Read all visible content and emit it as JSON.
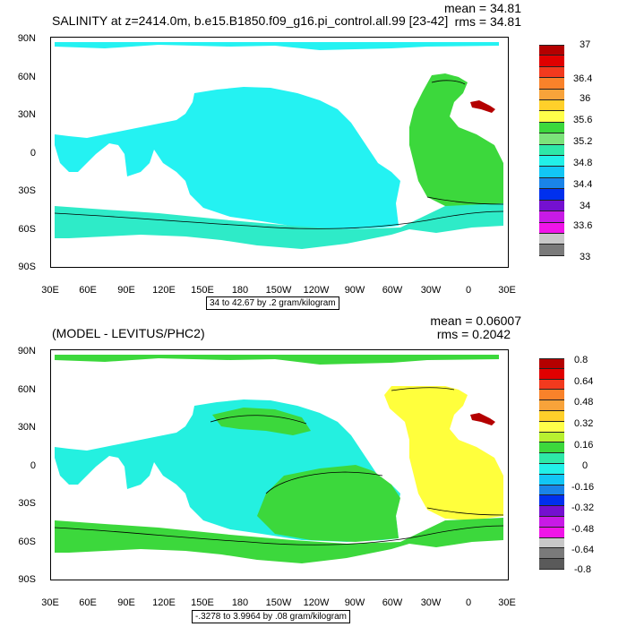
{
  "panels": [
    {
      "title": "SALINITY at z=2414.0m, b.e15.B1850.f09_g16.pi_control.all.99 [23-42]",
      "mean_label": "mean = 34.81",
      "rms_label": "rms = 34.81",
      "range_label": "34 to 42.67 by .2 gram/kilogram",
      "colorbar_labels": [
        "37",
        "36.4",
        "36",
        "35.6",
        "35.2",
        "34.8",
        "34.4",
        "34",
        "33.6",
        "33"
      ],
      "colorbar_colors": [
        "#b40000",
        "#e00000",
        "#f23a1e",
        "#f9822a",
        "#f8a33a",
        "#ffd02a",
        "#ffff4a",
        "#3cd83c",
        "#7ce37a",
        "#2ee8a8",
        "#22f0e8",
        "#12c6f5",
        "#1a84e8",
        "#0030ee",
        "#7410d0",
        "#c81ae6",
        "#f014e8",
        "#c8c8c8",
        "#7a7a7a"
      ],
      "ocean_colors": {
        "pacific": "#24f2f2",
        "atlantic": "#3cd83c",
        "southern": "#2eebc8",
        "med": "#b40000"
      }
    },
    {
      "title": "(MODEL - LEVITUS/PHC2)",
      "mean_label": "mean = 0.06007",
      "rms_label": "rms = 0.2042",
      "range_label": "-.3278 to 3.9964 by .08 gram/kilogram",
      "colorbar_labels": [
        "0.8",
        "0.64",
        "0.48",
        "0.32",
        "0.16",
        "0",
        "-0.16",
        "-0.32",
        "-0.48",
        "-0.64",
        "-0.8"
      ],
      "colorbar_colors": [
        "#b40000",
        "#e00000",
        "#f23a1e",
        "#f9822a",
        "#f8a33a",
        "#ffd02a",
        "#ffff4a",
        "#b8f030",
        "#3cd83c",
        "#2ee8a8",
        "#22f0e8",
        "#12c6f5",
        "#1a84e8",
        "#0030ee",
        "#7410d0",
        "#c81ae6",
        "#f014e8",
        "#c8c8c8",
        "#7a7a7a",
        "#5a5a5a"
      ],
      "ocean_colors": {
        "pacific": "#24f0e0",
        "atlantic": "#ffff3c",
        "southern": "#3cd83c",
        "med": "#b40000"
      }
    }
  ],
  "lat_labels": [
    "90N",
    "60N",
    "30N",
    "0",
    "30S",
    "60S",
    "90S"
  ],
  "lon_labels": [
    "30E",
    "60E",
    "90E",
    "120E",
    "150E",
    "180",
    "150W",
    "120W",
    "90W",
    "60W",
    "30W",
    "0",
    "30E"
  ]
}
